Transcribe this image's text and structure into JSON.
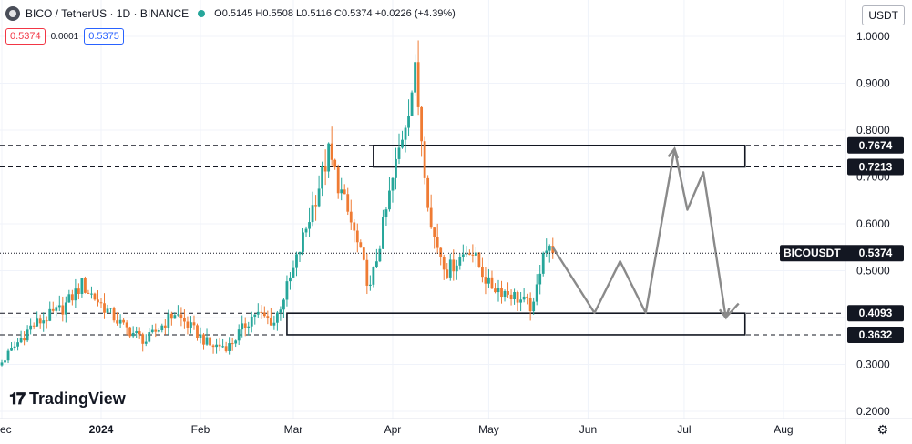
{
  "header": {
    "symbol": "BICO / TetherUS · 1D · BINANCE",
    "ohlc": "O0.5145 H0.5508 L0.5116 C0.5374 +0.0226 (+4.39%)"
  },
  "quote": {
    "bid": "0.5374",
    "spread": "0.0001",
    "ask": "0.5375"
  },
  "currency_button": "USDT",
  "logo_text": "TradingView",
  "icons": {
    "symbol": "bico-logo-icon",
    "status": "market-open-dot-icon",
    "logo": "tradingview-logo-icon",
    "settings": "settings-gear-icon"
  },
  "colors": {
    "up": "#26a69a",
    "down": "#ef7b33",
    "projection": "#8a8a8a",
    "axis_label_bg": "#131722"
  },
  "chart_data": {
    "type": "candlestick",
    "title": "",
    "xlabel": "",
    "ylabel": "",
    "ylim": [
      0.2,
      1.03
    ],
    "y_ticks": [
      "1.0000",
      "0.9000",
      "0.8000",
      "0.7000",
      "0.6000",
      "0.5000",
      "0.4000",
      "0.3000",
      "0.2000"
    ],
    "x_ticks": [
      "Dec",
      "2024",
      "Feb",
      "Mar",
      "Apr",
      "May",
      "Jun",
      "Jul",
      "Aug"
    ],
    "grid": true,
    "last_price_label": {
      "name": "BICOUSDT",
      "value": "0.5374"
    },
    "levels": [
      {
        "label": "0.7674",
        "value": 0.7674
      },
      {
        "label": "0.7213",
        "value": 0.7213
      },
      {
        "label": "0.4093",
        "value": 0.4093
      },
      {
        "label": "0.3632",
        "value": 0.3632
      }
    ],
    "zones": [
      {
        "from_date": "2024-03-26",
        "to_date": "2024-07-20",
        "low": 0.7213,
        "high": 0.7674
      },
      {
        "from_date": "2024-02-28",
        "to_date": "2024-07-20",
        "low": 0.3632,
        "high": 0.4093
      }
    ],
    "closes": [
      {
        "date": "2023-11-28",
        "close": 0.28
      },
      {
        "date": "2023-12-10",
        "close": 0.38
      },
      {
        "date": "2023-12-20",
        "close": 0.42
      },
      {
        "date": "2023-12-26",
        "close": 0.47
      },
      {
        "date": "2024-01-08",
        "close": 0.38
      },
      {
        "date": "2024-01-15",
        "close": 0.35
      },
      {
        "date": "2024-01-24",
        "close": 0.41
      },
      {
        "date": "2024-02-04",
        "close": 0.34
      },
      {
        "date": "2024-02-10",
        "close": 0.34
      },
      {
        "date": "2024-02-18",
        "close": 0.41
      },
      {
        "date": "2024-02-24",
        "close": 0.39
      },
      {
        "date": "2024-03-01",
        "close": 0.5
      },
      {
        "date": "2024-03-12",
        "close": 0.75
      },
      {
        "date": "2024-03-20",
        "close": 0.58
      },
      {
        "date": "2024-03-25",
        "close": 0.46
      },
      {
        "date": "2024-03-31",
        "close": 0.66
      },
      {
        "date": "2024-04-08",
        "close": 0.92
      },
      {
        "date": "2024-04-13",
        "close": 0.59
      },
      {
        "date": "2024-04-18",
        "close": 0.5
      },
      {
        "date": "2024-04-25",
        "close": 0.55
      },
      {
        "date": "2024-05-01",
        "close": 0.47
      },
      {
        "date": "2024-05-08",
        "close": 0.45
      },
      {
        "date": "2024-05-15",
        "close": 0.42
      },
      {
        "date": "2024-05-18",
        "close": 0.55
      },
      {
        "date": "2024-05-21",
        "close": 0.5374
      }
    ],
    "projection": [
      {
        "date": "2024-05-21",
        "value": 0.55
      },
      {
        "date": "2024-06-03",
        "value": 0.41
      },
      {
        "date": "2024-06-11",
        "value": 0.52
      },
      {
        "date": "2024-06-19",
        "value": 0.41
      },
      {
        "date": "2024-06-28",
        "value": 0.76
      },
      {
        "date": "2024-07-02",
        "value": 0.63
      },
      {
        "date": "2024-07-07",
        "value": 0.71
      },
      {
        "date": "2024-07-14",
        "value": 0.4
      },
      {
        "date": "2024-07-18",
        "value": 0.43
      }
    ]
  }
}
